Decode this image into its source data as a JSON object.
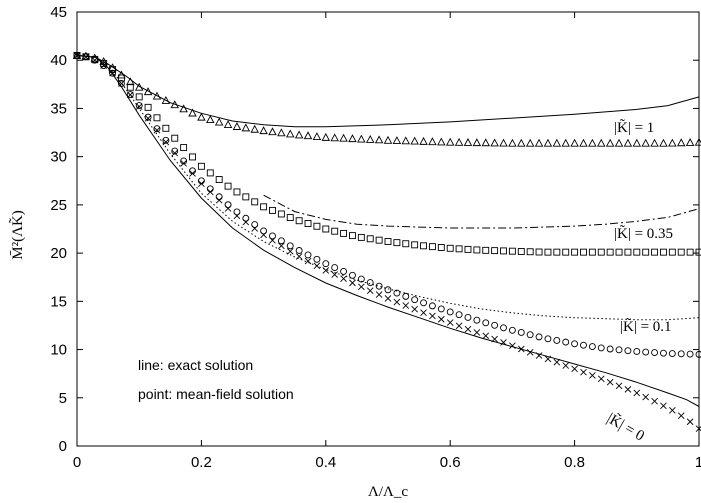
{
  "chart_data": {
    "type": "line",
    "xlabel": "Λ/Λ_c",
    "ylabel": "M̄²(ΛK̃)",
    "xlim": [
      0,
      1
    ],
    "ylim": [
      0,
      45
    ],
    "x_ticks": [
      "0",
      "0.2",
      "0.4",
      "0.6",
      "0.8",
      "1"
    ],
    "y_ticks": [
      "0",
      "5",
      "10",
      "15",
      "20",
      "25",
      "30",
      "35",
      "40",
      "45"
    ],
    "grid": false,
    "notes": [
      "line:   exact solution",
      "point: mean-field solution"
    ],
    "annotations": [
      "|K̃| = 1",
      "|K̃| = 0.35",
      "|K̃| = 0.1",
      "|K̃| = 0"
    ],
    "series": [
      {
        "kind": "exact",
        "style": "solid",
        "x": [
          0,
          0.03,
          0.05,
          0.08,
          0.1,
          0.15,
          0.2,
          0.25,
          0.3,
          0.35,
          0.4,
          0.5,
          0.6,
          0.7,
          0.8,
          0.9,
          0.95,
          1.0
        ],
        "y": [
          40.5,
          40.3,
          39.6,
          38.3,
          37.3,
          35.6,
          34.5,
          33.7,
          33.3,
          33.1,
          33.1,
          33.3,
          33.6,
          34.0,
          34.4,
          34.9,
          35.3,
          36.2
        ]
      },
      {
        "kind": "exact",
        "style": "dash-dot",
        "x": [
          0.3,
          0.35,
          0.4,
          0.45,
          0.5,
          0.55,
          0.6,
          0.65,
          0.7,
          0.75,
          0.8,
          0.85,
          0.9,
          0.95,
          1.0
        ],
        "y": [
          26.0,
          24.3,
          23.5,
          23.0,
          22.8,
          22.7,
          22.6,
          22.6,
          22.6,
          22.7,
          22.8,
          23.0,
          23.3,
          23.7,
          24.6
        ]
      },
      {
        "kind": "exact",
        "style": "dotted",
        "x": [
          0,
          0.03,
          0.05,
          0.07,
          0.1,
          0.15,
          0.2,
          0.25,
          0.3,
          0.35,
          0.4,
          0.45,
          0.5,
          0.55,
          0.6,
          0.65,
          0.7,
          0.75,
          0.8,
          0.85,
          0.9,
          0.95,
          1.0
        ],
        "y": [
          40.5,
          40.3,
          39.3,
          37.8,
          35.0,
          30.3,
          26.2,
          23.3,
          21.2,
          19.6,
          18.3,
          17.2,
          16.3,
          15.5,
          14.8,
          14.2,
          13.8,
          13.5,
          13.3,
          13.2,
          13.1,
          13.1,
          13.3
        ]
      },
      {
        "kind": "exact",
        "style": "solid",
        "x": [
          0,
          0.03,
          0.05,
          0.07,
          0.1,
          0.15,
          0.2,
          0.25,
          0.3,
          0.35,
          0.4,
          0.45,
          0.5,
          0.55,
          0.6,
          0.65,
          0.7,
          0.75,
          0.8,
          0.85,
          0.9,
          0.95,
          0.98,
          1.0
        ],
        "y": [
          40.5,
          40.3,
          39.2,
          37.4,
          34.3,
          29.6,
          25.7,
          22.6,
          20.3,
          18.5,
          16.9,
          15.6,
          14.4,
          13.3,
          12.2,
          11.2,
          10.3,
          9.4,
          8.5,
          7.6,
          6.6,
          5.5,
          4.8,
          4.1
        ]
      },
      {
        "kind": "mean-field",
        "marker": "triangle",
        "x": [
          0,
          0.02,
          0.04,
          0.06,
          0.08,
          0.1,
          0.15,
          0.2,
          0.25,
          0.3,
          0.35,
          0.4,
          0.5,
          0.6,
          0.7,
          0.8,
          0.9,
          0.95,
          1.0
        ],
        "y": [
          40.5,
          40.4,
          40.0,
          39.1,
          38.0,
          37.2,
          35.6,
          34.1,
          33.2,
          32.7,
          32.3,
          32.0,
          31.7,
          31.5,
          31.4,
          31.4,
          31.4,
          31.4,
          31.5
        ]
      },
      {
        "kind": "mean-field",
        "marker": "square",
        "x": [
          0,
          0.02,
          0.04,
          0.06,
          0.08,
          0.1,
          0.15,
          0.2,
          0.25,
          0.3,
          0.35,
          0.4,
          0.45,
          0.5,
          0.55,
          0.6,
          0.65,
          0.7,
          0.75,
          0.8,
          0.85,
          0.9,
          0.95,
          1.0
        ],
        "y": [
          40.5,
          40.3,
          39.8,
          38.9,
          37.6,
          36.2,
          32.4,
          29.0,
          26.6,
          24.8,
          23.5,
          22.5,
          21.7,
          21.2,
          20.8,
          20.5,
          20.3,
          20.2,
          20.1,
          20.1,
          20.1,
          20.1,
          20.1,
          20.1
        ]
      },
      {
        "kind": "mean-field",
        "marker": "circle",
        "x": [
          0,
          0.02,
          0.04,
          0.06,
          0.08,
          0.1,
          0.15,
          0.2,
          0.25,
          0.3,
          0.35,
          0.4,
          0.45,
          0.5,
          0.55,
          0.6,
          0.65,
          0.7,
          0.75,
          0.8,
          0.85,
          0.9,
          0.95,
          1.0
        ],
        "y": [
          40.5,
          40.3,
          39.6,
          38.5,
          36.9,
          35.3,
          31.1,
          27.5,
          24.6,
          22.3,
          20.5,
          18.9,
          17.5,
          16.2,
          15.0,
          13.9,
          12.9,
          12.0,
          11.2,
          10.6,
          10.1,
          9.8,
          9.6,
          9.5
        ]
      },
      {
        "kind": "mean-field",
        "marker": "cross",
        "x": [
          0,
          0.02,
          0.04,
          0.06,
          0.08,
          0.1,
          0.15,
          0.2,
          0.25,
          0.3,
          0.35,
          0.4,
          0.45,
          0.5,
          0.55,
          0.6,
          0.65,
          0.7,
          0.75,
          0.8,
          0.85,
          0.9,
          0.93,
          0.96,
          0.98,
          1.0
        ],
        "y": [
          40.5,
          40.3,
          39.6,
          38.5,
          36.9,
          35.2,
          30.9,
          27.2,
          24.2,
          21.9,
          19.9,
          18.2,
          16.7,
          15.3,
          14.0,
          12.8,
          11.6,
          10.4,
          9.2,
          8.0,
          6.8,
          5.5,
          4.6,
          3.6,
          2.8,
          1.8
        ]
      }
    ]
  }
}
